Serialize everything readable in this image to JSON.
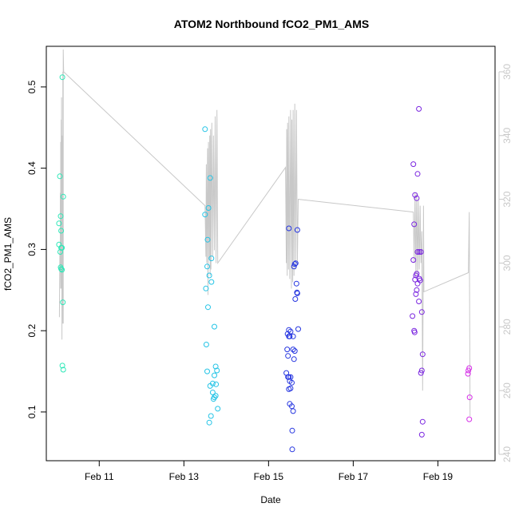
{
  "chart_data": {
    "type": "scatter",
    "title": "ATOM2 Northbound fCO2_PM1_AMS",
    "xlabel": "Date",
    "ylabel": "fCO2_PM1_AMS",
    "ylim": [
      0.04,
      0.55
    ],
    "y2lim": [
      238,
      368
    ],
    "xlim": [
      "Feb 10",
      "Feb 20"
    ],
    "x_ticks": [
      {
        "label": "Feb 11",
        "day": 11
      },
      {
        "label": "Feb 13",
        "day": 13
      },
      {
        "label": "Feb 15",
        "day": 15
      },
      {
        "label": "Feb 17",
        "day": 17
      },
      {
        "label": "Feb 19",
        "day": 19
      }
    ],
    "y_ticks": [
      0.1,
      0.2,
      0.3,
      0.4,
      0.5
    ],
    "y_tick_labels": [
      "0.1",
      "0.2",
      "0.3",
      "0.4",
      "0.5"
    ],
    "y2_ticks": [
      240,
      260,
      280,
      300,
      320,
      340,
      360
    ],
    "y2_tick_labels": [
      "240",
      "260",
      "280",
      "300",
      "320",
      "340",
      "360"
    ],
    "grid": false,
    "colors": {
      "line": "#c8c8c8",
      "right_axis": "#c8c8c8",
      "cluster1": "#2ee8b8",
      "cluster2": "#25c4e6",
      "cluster3": "#2535e0",
      "cluster4": "#7a25e0",
      "cluster5": "#d630e8"
    },
    "series": [
      {
        "color": "#2ee8b8",
        "points": [
          [
            10.07,
            0.39
          ],
          [
            10.05,
            0.332
          ],
          [
            10.05,
            0.306
          ],
          [
            10.08,
            0.297
          ],
          [
            10.09,
            0.341
          ],
          [
            10.1,
            0.323
          ],
          [
            10.1,
            0.302
          ],
          [
            10.12,
            0.302
          ],
          [
            10.09,
            0.278
          ],
          [
            10.12,
            0.275
          ],
          [
            10.1,
            0.276
          ],
          [
            10.15,
            0.365
          ],
          [
            10.13,
            0.512
          ],
          [
            10.14,
            0.235
          ],
          [
            10.13,
            0.157
          ],
          [
            10.15,
            0.152
          ]
        ]
      },
      {
        "color": "#25c4e6",
        "points": [
          [
            13.5,
            0.448
          ],
          [
            13.5,
            0.343
          ],
          [
            13.52,
            0.252
          ],
          [
            13.56,
            0.312
          ],
          [
            13.58,
            0.351
          ],
          [
            13.62,
            0.388
          ],
          [
            13.55,
            0.279
          ],
          [
            13.6,
            0.268
          ],
          [
            13.65,
            0.289
          ],
          [
            13.65,
            0.26
          ],
          [
            13.57,
            0.229
          ],
          [
            13.72,
            0.205
          ],
          [
            13.53,
            0.183
          ],
          [
            13.55,
            0.15
          ],
          [
            13.75,
            0.156
          ],
          [
            13.72,
            0.145
          ],
          [
            13.78,
            0.151
          ],
          [
            13.62,
            0.132
          ],
          [
            13.68,
            0.135
          ],
          [
            13.76,
            0.134
          ],
          [
            13.68,
            0.124
          ],
          [
            13.72,
            0.118
          ],
          [
            13.75,
            0.12
          ],
          [
            13.7,
            0.116
          ],
          [
            13.8,
            0.104
          ],
          [
            13.64,
            0.095
          ],
          [
            13.6,
            0.087
          ]
        ]
      },
      {
        "color": "#2535e0",
        "points": [
          [
            15.48,
            0.326
          ],
          [
            15.68,
            0.324
          ],
          [
            15.62,
            0.282
          ],
          [
            15.64,
            0.283
          ],
          [
            15.6,
            0.279
          ],
          [
            15.66,
            0.258
          ],
          [
            15.67,
            0.247
          ],
          [
            15.68,
            0.246
          ],
          [
            15.63,
            0.239
          ],
          [
            15.7,
            0.202
          ],
          [
            15.45,
            0.196
          ],
          [
            15.48,
            0.201
          ],
          [
            15.5,
            0.193
          ],
          [
            15.52,
            0.199
          ],
          [
            15.48,
            0.193
          ],
          [
            15.58,
            0.193
          ],
          [
            15.44,
            0.177
          ],
          [
            15.58,
            0.177
          ],
          [
            15.62,
            0.175
          ],
          [
            15.46,
            0.169
          ],
          [
            15.6,
            0.165
          ],
          [
            15.42,
            0.148
          ],
          [
            15.46,
            0.143
          ],
          [
            15.48,
            0.143
          ],
          [
            15.52,
            0.143
          ],
          [
            15.5,
            0.138
          ],
          [
            15.55,
            0.136
          ],
          [
            15.52,
            0.129
          ],
          [
            15.48,
            0.128
          ],
          [
            15.5,
            0.11
          ],
          [
            15.55,
            0.107
          ],
          [
            15.58,
            0.101
          ],
          [
            15.56,
            0.077
          ],
          [
            15.56,
            0.054
          ]
        ]
      },
      {
        "color": "#7a25e0",
        "points": [
          [
            18.55,
            0.473
          ],
          [
            18.42,
            0.405
          ],
          [
            18.52,
            0.393
          ],
          [
            18.46,
            0.367
          ],
          [
            18.5,
            0.363
          ],
          [
            18.44,
            0.331
          ],
          [
            18.52,
            0.297
          ],
          [
            18.56,
            0.297
          ],
          [
            18.6,
            0.297
          ],
          [
            18.42,
            0.287
          ],
          [
            18.5,
            0.27
          ],
          [
            18.48,
            0.268
          ],
          [
            18.46,
            0.263
          ],
          [
            18.56,
            0.264
          ],
          [
            18.52,
            0.258
          ],
          [
            18.48,
            0.245
          ],
          [
            18.58,
            0.262
          ],
          [
            18.5,
            0.25
          ],
          [
            18.55,
            0.236
          ],
          [
            18.62,
            0.223
          ],
          [
            18.4,
            0.218
          ],
          [
            18.45,
            0.198
          ],
          [
            18.44,
            0.2
          ],
          [
            18.64,
            0.171
          ],
          [
            18.62,
            0.151
          ],
          [
            18.6,
            0.148
          ],
          [
            18.64,
            0.088
          ],
          [
            18.62,
            0.072
          ]
        ]
      },
      {
        "color": "#d630e8",
        "points": [
          [
            19.74,
            0.154
          ],
          [
            19.72,
            0.151
          ],
          [
            19.71,
            0.147
          ],
          [
            19.75,
            0.118
          ],
          [
            19.74,
            0.091
          ]
        ]
      }
    ],
    "line_y2": {
      "description_points": [
        [
          10.06,
          283
        ],
        [
          10.07,
          305
        ],
        [
          10.08,
          298
        ],
        [
          10.08,
          322
        ],
        [
          10.09,
          292
        ],
        [
          10.09,
          338
        ],
        [
          10.1,
          292
        ],
        [
          10.1,
          345
        ],
        [
          10.11,
          301
        ],
        [
          10.11,
          352
        ],
        [
          10.12,
          276
        ],
        [
          10.12,
          334
        ],
        [
          10.13,
          286
        ],
        [
          10.13,
          340
        ],
        [
          10.14,
          281
        ],
        [
          10.14,
          360
        ],
        [
          10.15,
          281
        ],
        [
          10.15,
          367
        ],
        [
          10.16,
          360
        ],
        [
          13.5,
          318
        ],
        [
          13.52,
          302
        ],
        [
          13.53,
          331
        ],
        [
          13.54,
          300
        ],
        [
          13.56,
          336
        ],
        [
          13.57,
          290
        ],
        [
          13.58,
          338
        ],
        [
          13.6,
          301
        ],
        [
          13.61,
          340
        ],
        [
          13.62,
          296
        ],
        [
          13.63,
          342
        ],
        [
          13.64,
          298
        ],
        [
          13.66,
          344
        ],
        [
          13.68,
          302
        ],
        [
          13.7,
          340
        ],
        [
          13.72,
          304
        ],
        [
          13.74,
          346
        ],
        [
          13.76,
          300
        ],
        [
          13.78,
          348
        ],
        [
          13.8,
          300
        ],
        [
          15.4,
          330
        ],
        [
          15.42,
          300
        ],
        [
          15.43,
          342
        ],
        [
          15.44,
          296
        ],
        [
          15.45,
          344
        ],
        [
          15.47,
          298
        ],
        [
          15.48,
          346
        ],
        [
          15.5,
          295
        ],
        [
          15.52,
          348
        ],
        [
          15.54,
          292
        ],
        [
          15.55,
          345
        ],
        [
          15.57,
          294
        ],
        [
          15.58,
          348
        ],
        [
          15.6,
          296
        ],
        [
          15.62,
          350
        ],
        [
          15.64,
          298
        ],
        [
          15.66,
          348
        ],
        [
          15.68,
          300
        ],
        [
          15.7,
          320
        ],
        [
          18.42,
          316
        ],
        [
          18.44,
          300
        ],
        [
          18.46,
          322
        ],
        [
          18.48,
          296
        ],
        [
          18.5,
          322
        ],
        [
          18.52,
          296
        ],
        [
          18.54,
          320
        ],
        [
          18.56,
          298
        ],
        [
          18.58,
          318
        ],
        [
          18.6,
          300
        ],
        [
          18.62,
          310
        ],
        [
          18.64,
          260
        ],
        [
          18.65,
          290
        ],
        [
          18.66,
          318
        ],
        [
          18.67,
          291
        ],
        [
          19.72,
          297
        ],
        [
          19.74,
          316
        ],
        [
          19.76,
          252
        ]
      ]
    }
  }
}
